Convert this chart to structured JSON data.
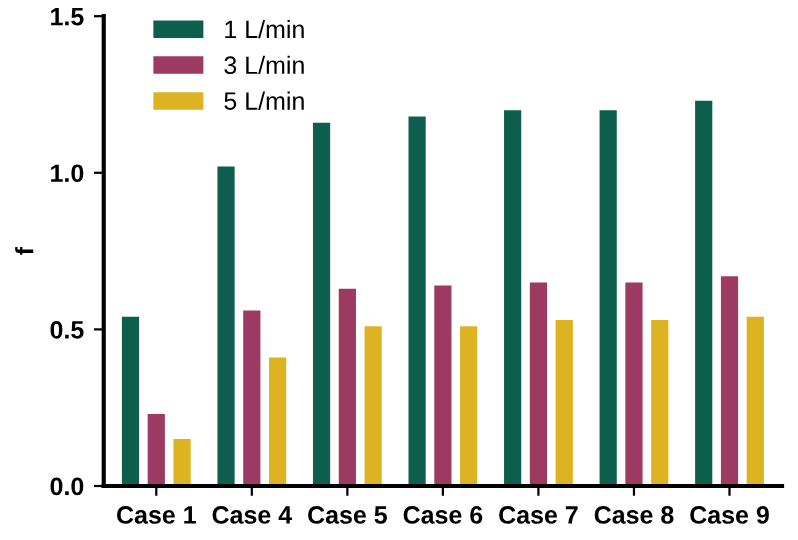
{
  "chart_data": {
    "type": "bar",
    "ylabel": "f",
    "categories": [
      "Case 1",
      "Case 4",
      "Case 5",
      "Case 6",
      "Case 7",
      "Case 8",
      "Case 9"
    ],
    "series": [
      {
        "name": "1 L/min",
        "color": "#0e5e4e",
        "values": [
          0.54,
          1.02,
          1.16,
          1.18,
          1.2,
          1.2,
          1.23
        ]
      },
      {
        "name": "3 L/min",
        "color": "#9c3a62",
        "values": [
          0.23,
          0.56,
          0.63,
          0.64,
          0.65,
          0.65,
          0.67
        ]
      },
      {
        "name": "5 L/min",
        "color": "#ddb321",
        "values": [
          0.15,
          0.41,
          0.51,
          0.51,
          0.53,
          0.53,
          0.54
        ]
      }
    ],
    "ylim": [
      0,
      1.5
    ],
    "yticks": [
      {
        "value": 0,
        "label": "0.0"
      },
      {
        "value": 0.5,
        "label": "0.5"
      },
      {
        "value": 1,
        "label": "1.0"
      },
      {
        "value": 1.5,
        "label": "1.5"
      }
    ],
    "grid": false,
    "legend": "top left"
  }
}
